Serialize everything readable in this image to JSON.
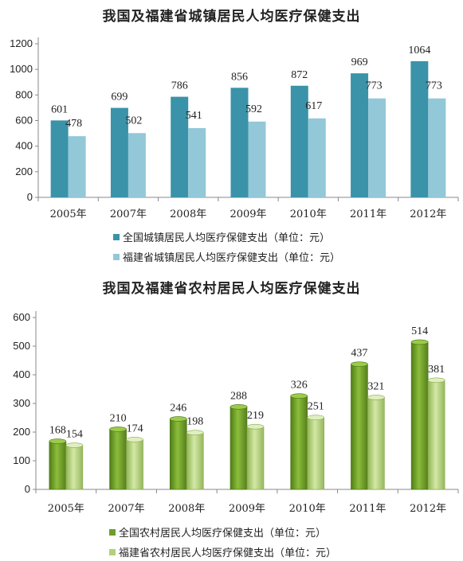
{
  "chart_data": [
    {
      "type": "bar",
      "title": "我国及福建省城镇居民人均医疗保健支出",
      "categories": [
        "2005年",
        "2007年",
        "2008年",
        "2009年",
        "2010年",
        "2011年",
        "2012年"
      ],
      "series": [
        {
          "name": "全国城镇居民人均医疗保健支出（单位：元）",
          "values": [
            601,
            699,
            786,
            856,
            872,
            969,
            1064
          ],
          "color": "#3a93a8"
        },
        {
          "name": "福建省城镇居民人均医疗保健支出（单位：元）",
          "values": [
            478,
            502,
            541,
            592,
            617,
            773,
            773
          ],
          "color": "#93c8d8"
        }
      ],
      "ylim": [
        0,
        1200
      ],
      "yticks": [
        "0",
        "200",
        "400",
        "600",
        "800",
        "1000",
        "1200"
      ],
      "grid": false,
      "legend": "bottom"
    },
    {
      "type": "bar",
      "title": "我国及福建省农村居民人均医疗保健支出",
      "categories": [
        "2005年",
        "2007年",
        "2008年",
        "2009年",
        "2010年",
        "2011年",
        "2012年"
      ],
      "series": [
        {
          "name": "全国农村居民人均医疗保健支出（单位：元）",
          "values": [
            168,
            210,
            246,
            288,
            326,
            437,
            514
          ],
          "color": "#6e9e28"
        },
        {
          "name": "福建省农村居民人均医疗保健支出（单位：元）",
          "values": [
            154,
            174,
            198,
            219,
            251,
            321,
            381
          ],
          "color": "#b3d07a"
        }
      ],
      "ylim": [
        0,
        600
      ],
      "yticks": [
        "0",
        "100",
        "200",
        "300",
        "400",
        "500",
        "600"
      ],
      "grid": false,
      "legend": "bottom"
    }
  ]
}
